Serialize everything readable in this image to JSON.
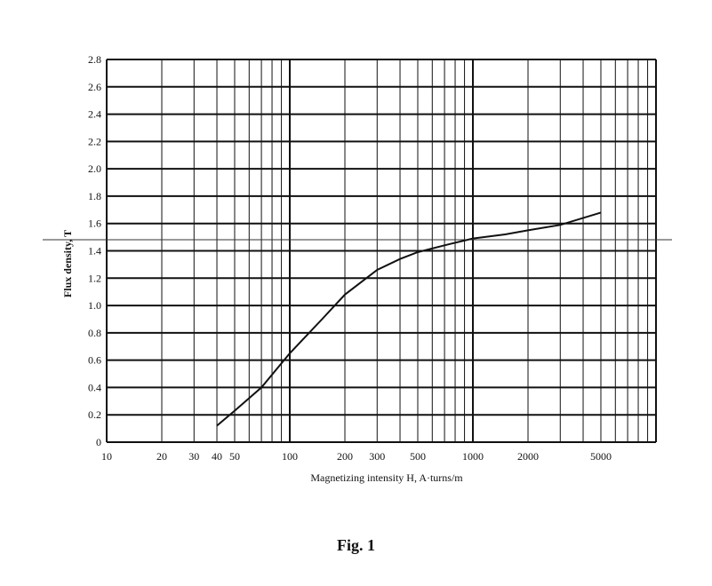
{
  "chart_data": {
    "type": "line",
    "xscale": "log",
    "xlim": [
      10,
      10000
    ],
    "ylim": [
      0,
      2.8
    ],
    "xlabel": "Magnetizing intensity H, A·turns/m",
    "ylabel": "Flux density, T",
    "x_tick_labels": [
      {
        "value": 10,
        "label": "10"
      },
      {
        "value": 20,
        "label": "20"
      },
      {
        "value": 30,
        "label": "30"
      },
      {
        "value": 40,
        "label": "40"
      },
      {
        "value": 50,
        "label": "50"
      },
      {
        "value": 100,
        "label": "100"
      },
      {
        "value": 200,
        "label": "200"
      },
      {
        "value": 300,
        "label": "300"
      },
      {
        "value": 500,
        "label": "500"
      },
      {
        "value": 1000,
        "label": "1000"
      },
      {
        "value": 2000,
        "label": "2000"
      },
      {
        "value": 5000,
        "label": "5000"
      }
    ],
    "y_tick_labels": [
      {
        "value": 0,
        "label": "0"
      },
      {
        "value": 0.2,
        "label": "0.2"
      },
      {
        "value": 0.4,
        "label": "0.4"
      },
      {
        "value": 0.6,
        "label": "0.6"
      },
      {
        "value": 0.8,
        "label": "0.8"
      },
      {
        "value": 1.0,
        "label": "1.0"
      },
      {
        "value": 1.2,
        "label": "1.2"
      },
      {
        "value": 1.4,
        "label": "1.4"
      },
      {
        "value": 1.6,
        "label": "1.6"
      },
      {
        "value": 1.8,
        "label": "1.8"
      },
      {
        "value": 2.0,
        "label": "2.0"
      },
      {
        "value": 2.2,
        "label": "2.2"
      },
      {
        "value": 2.4,
        "label": "2.4"
      },
      {
        "value": 2.6,
        "label": "2.6"
      },
      {
        "value": 2.8,
        "label": "2.8"
      }
    ],
    "grid": true,
    "series": [
      {
        "x": [
          40,
          50,
          70,
          100,
          150,
          200,
          300,
          400,
          500,
          700,
          1000,
          1500,
          2000,
          3000,
          5000
        ],
        "y": [
          0.12,
          0.23,
          0.4,
          0.65,
          0.9,
          1.08,
          1.26,
          1.34,
          1.39,
          1.44,
          1.49,
          1.52,
          1.55,
          1.59,
          1.68
        ]
      }
    ]
  },
  "caption": "Fig. 1"
}
